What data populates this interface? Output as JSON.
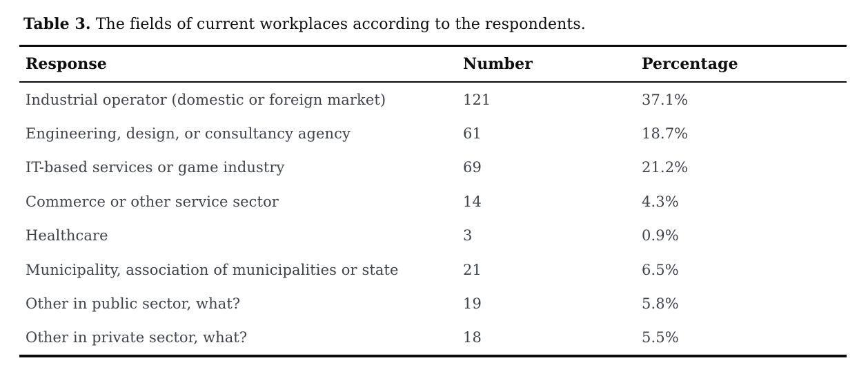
{
  "caption": {
    "label": "Table 3.",
    "text": " The fields of current workplaces according to the respondents."
  },
  "table": {
    "columns": [
      "Response",
      "Number",
      "Percentage"
    ],
    "rows": [
      {
        "response": "Industrial operator (domestic or foreign market)",
        "number": "121",
        "percentage": "37.1%"
      },
      {
        "response": "Engineering, design, or consultancy agency",
        "number": "61",
        "percentage": "18.7%"
      },
      {
        "response": "IT-based services or game industry",
        "number": "69",
        "percentage": "21.2%"
      },
      {
        "response": "Commerce or other service sector",
        "number": "14",
        "percentage": "4.3%"
      },
      {
        "response": "Healthcare",
        "number": "3",
        "percentage": "0.9%"
      },
      {
        "response": "Municipality, association of municipalities or state",
        "number": "21",
        "percentage": "6.5%"
      },
      {
        "response": "Other in public sector, what?",
        "number": "19",
        "percentage": "5.8%"
      },
      {
        "response": "Other in private sector, what?",
        "number": "18",
        "percentage": "5.5%"
      }
    ]
  },
  "colors": {
    "background": "#ffffff",
    "rule": "#0a0a0a",
    "heading_text": "#0d0d0d",
    "body_text": "#3e434a"
  }
}
